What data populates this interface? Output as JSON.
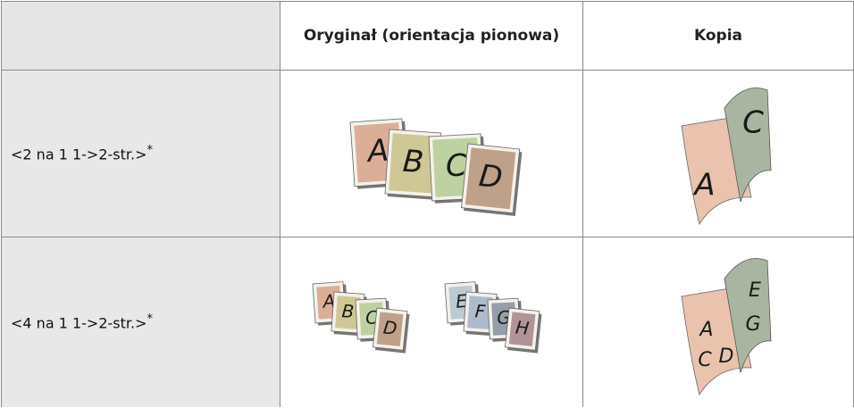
{
  "table": {
    "header": {
      "original": "Oryginał (orientacja pionowa)",
      "copy": "Kopia"
    },
    "rows": [
      {
        "setting": "<2 na 1 1->2-str.>",
        "note_mark": "*",
        "original_pages": [
          "A",
          "B",
          "C",
          "D"
        ],
        "copy_pages": [
          "A",
          "C"
        ]
      },
      {
        "setting": "<4 na 1 1->2-str.>",
        "note_mark": "*",
        "original_pages": [
          "A",
          "B",
          "C",
          "D",
          "E",
          "F",
          "G",
          "H"
        ],
        "copy_pages": [
          "A",
          "C",
          "D",
          "E",
          "G"
        ]
      }
    ]
  }
}
